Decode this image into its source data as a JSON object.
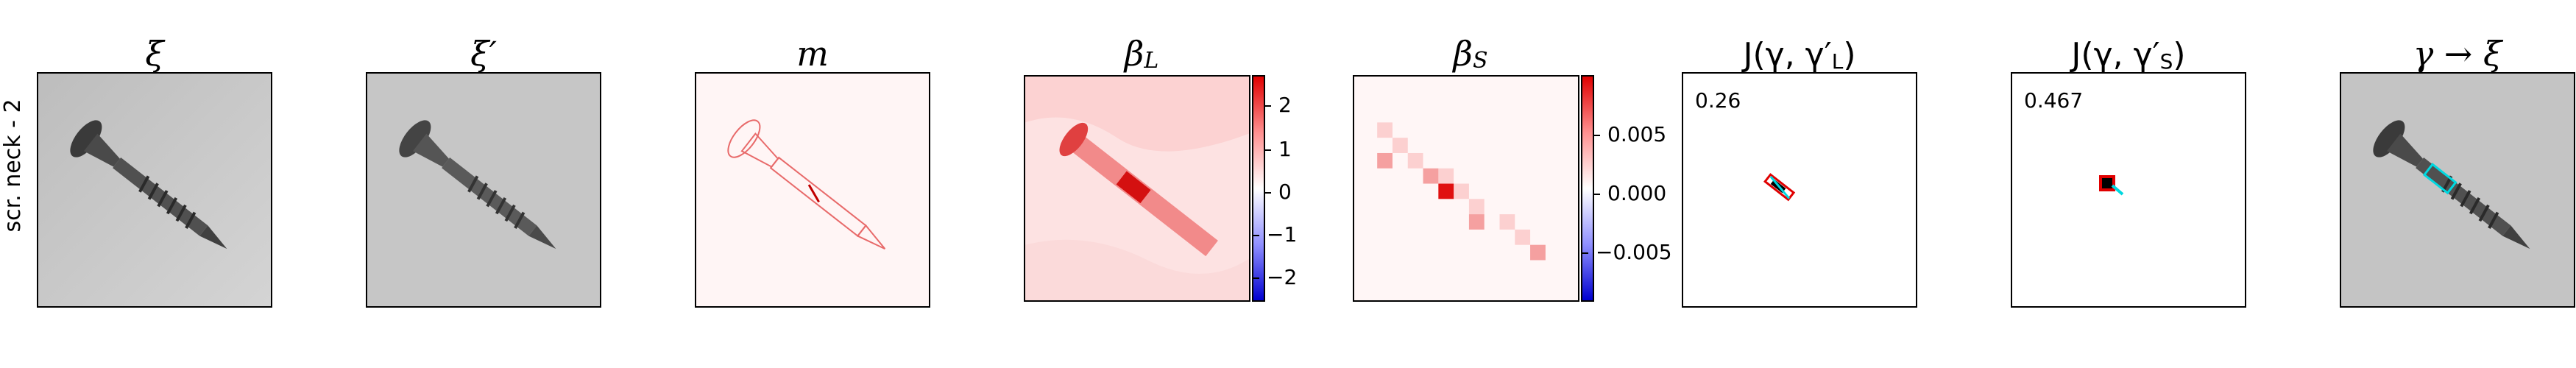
{
  "row_label": "scr. neck - 2",
  "panels": [
    {
      "title": "ξ"
    },
    {
      "title": "ξ′"
    },
    {
      "title": "m"
    },
    {
      "title": "β",
      "sub": "L",
      "colorbar": [
        "2",
        "1",
        "0",
        "−1",
        "−2"
      ]
    },
    {
      "title": "β",
      "sub": "S",
      "colorbar": [
        "0.005",
        "0.000",
        "−0.005"
      ]
    },
    {
      "title": "J(γ, γ′",
      "sub": "L",
      "close": ")",
      "score": "0.26"
    },
    {
      "title": "J(γ, γ′",
      "sub": "S",
      "close": ")",
      "score": "0.467"
    },
    {
      "title": "γ → ξ"
    }
  ],
  "colors": {
    "positive": "#e00000",
    "negative": "#0000d0",
    "overlay": "#00d8e0",
    "frame": "#000000"
  }
}
